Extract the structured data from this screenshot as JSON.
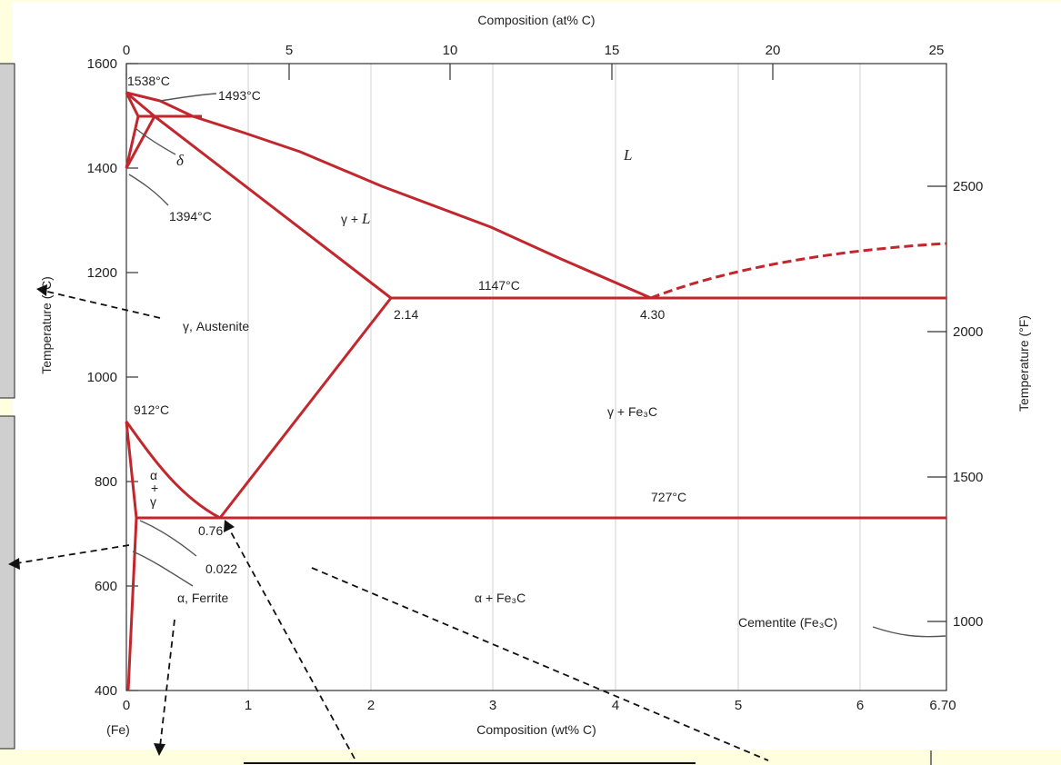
{
  "title_top": "Composition (at% C)",
  "x_label_bottom": "Composition (wt% C)",
  "y_label_left": "Temperature (°C)",
  "y_label_right": "Temperature (°F)",
  "fe_label": "(Fe)",
  "axes": {
    "wt_ticks": [
      "0",
      "1",
      "2",
      "3",
      "4",
      "5",
      "6",
      "6.70"
    ],
    "at_ticks": [
      "0",
      "5",
      "10",
      "15",
      "20",
      "25"
    ],
    "c_ticks": [
      "400",
      "600",
      "800",
      "1000",
      "1200",
      "1400",
      "1600"
    ],
    "f_ticks": [
      "1000",
      "1500",
      "2000",
      "2500"
    ]
  },
  "labels": {
    "t1538": "1538°C",
    "t1493": "1493°C",
    "t1394": "1394°C",
    "t1147": "1147°C",
    "t912": "912°C",
    "t727": "727°C",
    "c214": "2.14",
    "c430": "4.30",
    "c076": "0.76",
    "c0022": "0.022",
    "delta": "δ",
    "liquid": "L",
    "gamma_l_a": "γ + ",
    "gamma_l_b": "L",
    "austenite": "γ, Austenite",
    "gamma_fe3c": "γ + Fe₃C",
    "alpha_gamma_1": "α",
    "alpha_gamma_2": "+",
    "alpha_gamma_3": "γ",
    "ferrite": "α, Ferrite",
    "alpha_fe3c": "α + Fe₃C",
    "cementite": "Cementite (Fe₃C)"
  },
  "colors": {
    "phase_lines": "#c1272d",
    "background": "#ffffe0"
  }
}
